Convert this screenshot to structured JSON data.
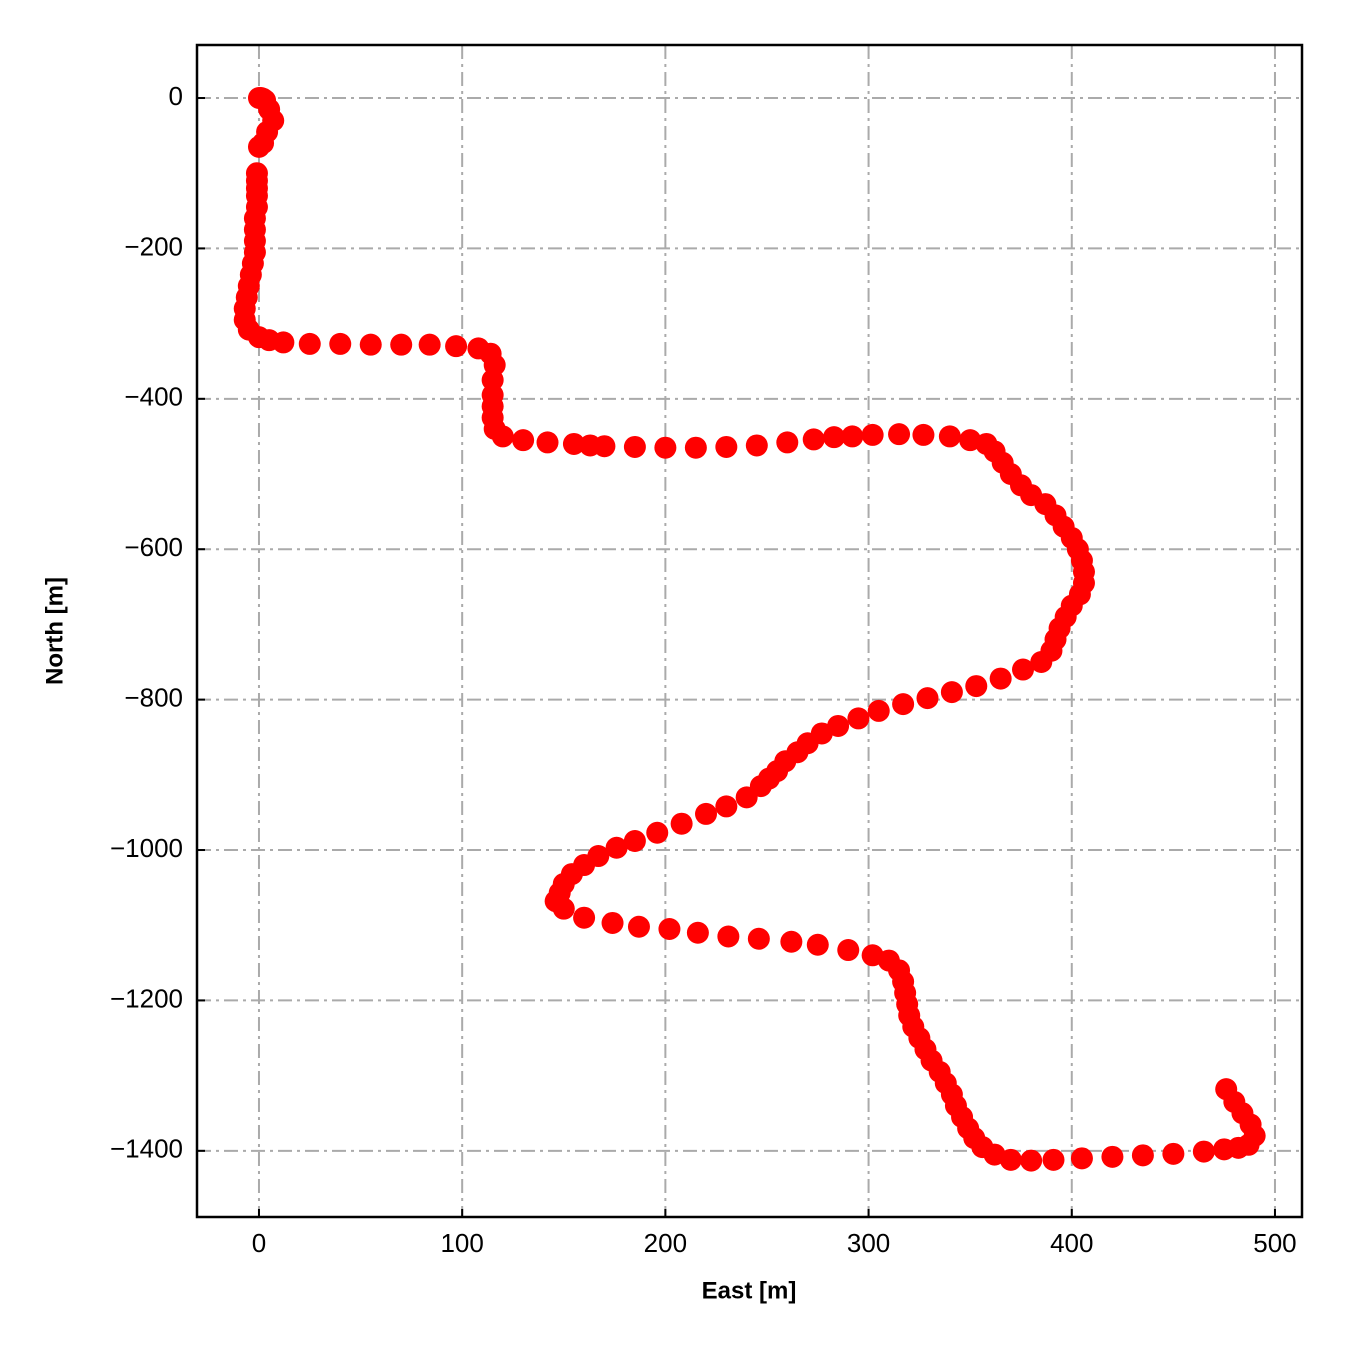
{
  "chart_data": {
    "type": "scatter",
    "x_label": "East [m]",
    "y_label": "North [m]",
    "color": "#ff0000",
    "grid": true,
    "xlim": [
      -30.5,
      513.3
    ],
    "ylim": [
      -1488,
      70.5
    ],
    "xticks": [
      0,
      100,
      200,
      300,
      400,
      500
    ],
    "yticks": [
      0,
      {
        "value": -200,
        "label": "−200"
      },
      {
        "value": -400,
        "label": "−400"
      },
      {
        "value": -600,
        "label": "−600"
      },
      {
        "value": -800,
        "label": "−800"
      },
      {
        "value": -1000,
        "label": "−1000"
      },
      {
        "value": -1200,
        "label": "−1200"
      },
      {
        "value": -1400,
        "label": "−1400"
      }
    ],
    "x": [
      0,
      1,
      2,
      3,
      5,
      7,
      4,
      2,
      0,
      -1,
      -1,
      -1,
      -1,
      -1,
      -2,
      -2,
      -2,
      -2,
      -3,
      -4,
      -5,
      -6,
      -7,
      -7,
      -5,
      0,
      5,
      12,
      25,
      40,
      55,
      70,
      84,
      97,
      108,
      114,
      116,
      115,
      115,
      115,
      115,
      116,
      120,
      130,
      142,
      155,
      163,
      170,
      185,
      200,
      215,
      230,
      245,
      260,
      273,
      283,
      292,
      302,
      315,
      327,
      340,
      350,
      358,
      362,
      366,
      370,
      375,
      380,
      387,
      392,
      396,
      400,
      403,
      405,
      406,
      406,
      404,
      400,
      397,
      394,
      392,
      390,
      385,
      376,
      365,
      353,
      341,
      329,
      317,
      305,
      295,
      285,
      277,
      270,
      265,
      259,
      255,
      251,
      247,
      240,
      230,
      220,
      208,
      196,
      185,
      176,
      167,
      160,
      154,
      150,
      148,
      146,
      150,
      160,
      174,
      187,
      202,
      216,
      231,
      246,
      262,
      275,
      290,
      302,
      310,
      315,
      317,
      318,
      319,
      320,
      322,
      325,
      328,
      331,
      335,
      338,
      341,
      343,
      346,
      349,
      352,
      356,
      362,
      370,
      380,
      391,
      405,
      420,
      435,
      450,
      465,
      475,
      482,
      487,
      490,
      488,
      484,
      480,
      476
    ],
    "y": [
      0,
      0,
      -1,
      -3,
      -15,
      -30,
      -45,
      -60,
      -65,
      -100,
      -110,
      -120,
      -130,
      -145,
      -160,
      -175,
      -190,
      -205,
      -220,
      -235,
      -250,
      -265,
      -280,
      -295,
      -308,
      -318,
      -322,
      -325,
      -327,
      -327,
      -328,
      -328,
      -328,
      -330,
      -333,
      -340,
      -355,
      -375,
      -395,
      -410,
      -425,
      -440,
      -450,
      -455,
      -458,
      -460,
      -462,
      -463,
      -464,
      -465,
      -465,
      -464,
      -462,
      -458,
      -454,
      -451,
      -450,
      -448,
      -447,
      -448,
      -450,
      -455,
      -460,
      -470,
      -485,
      -500,
      -515,
      -528,
      -540,
      -555,
      -570,
      -585,
      -600,
      -615,
      -630,
      -645,
      -660,
      -675,
      -690,
      -705,
      -720,
      -735,
      -750,
      -760,
      -772,
      -782,
      -790,
      -798,
      -806,
      -815,
      -825,
      -835,
      -845,
      -858,
      -870,
      -882,
      -895,
      -905,
      -915,
      -930,
      -942,
      -952,
      -965,
      -977,
      -988,
      -997,
      -1008,
      -1020,
      -1032,
      -1045,
      -1057,
      -1068,
      -1078,
      -1090,
      -1097,
      -1102,
      -1105,
      -1110,
      -1115,
      -1118,
      -1122,
      -1126,
      -1133,
      -1140,
      -1147,
      -1160,
      -1175,
      -1190,
      -1205,
      -1220,
      -1235,
      -1250,
      -1265,
      -1280,
      -1295,
      -1310,
      -1325,
      -1340,
      -1355,
      -1370,
      -1383,
      -1395,
      -1405,
      -1412,
      -1413,
      -1412,
      -1410,
      -1408,
      -1406,
      -1404,
      -1401,
      -1398,
      -1396,
      -1392,
      -1380,
      -1365,
      -1350,
      -1335,
      -1318
    ]
  }
}
